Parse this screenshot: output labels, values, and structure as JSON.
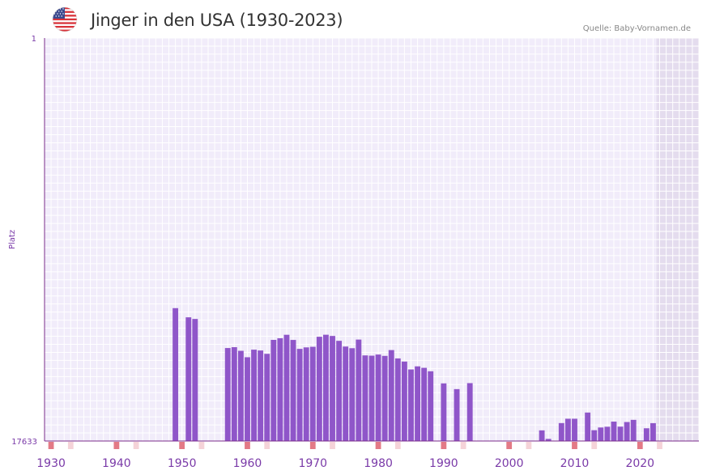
{
  "title": "Jinger in den USA (1930-2023)",
  "source": "Quelle: Baby-Vornamen.de",
  "flag_icon": "us-flag-icon",
  "colors": {
    "bar": "#8f56c9",
    "axis": "#7b2d8b",
    "grid_bg": "#f1ecfa",
    "shade": "#e4dcee",
    "marker": "#e37a86",
    "marker_light": "#f5d3d8",
    "tick_text": "#7a3aa8"
  },
  "chart_data": {
    "type": "bar",
    "title": "Jinger in den USA (1930-2023)",
    "xlabel": "",
    "ylabel": "Platz",
    "y_reversed": true,
    "ylim": [
      1,
      17633
    ],
    "ytick_labels": [
      "1",
      "17633"
    ],
    "xlim": [
      1929,
      2029
    ],
    "xtick_labels": [
      "1930",
      "1940",
      "1950",
      "1960",
      "1970",
      "1980",
      "1990",
      "2000",
      "2010",
      "2020"
    ],
    "xticks": [
      1930,
      1940,
      1950,
      1960,
      1970,
      1980,
      1990,
      2000,
      2010,
      2020
    ],
    "shaded_from_year": 2023,
    "categories": [
      1949,
      1951,
      1952,
      1957,
      1958,
      1959,
      1960,
      1961,
      1962,
      1963,
      1964,
      1965,
      1966,
      1967,
      1968,
      1969,
      1970,
      1971,
      1972,
      1973,
      1974,
      1975,
      1976,
      1977,
      1978,
      1979,
      1980,
      1981,
      1982,
      1983,
      1984,
      1985,
      1986,
      1987,
      1988,
      1990,
      1992,
      1994,
      2005,
      2006,
      2008,
      2009,
      2010,
      2012,
      2013,
      2014,
      2015,
      2016,
      2017,
      2018,
      2019,
      2021,
      2022
    ],
    "values": [
      11819,
      12220,
      12292,
      13564,
      13527,
      13686,
      13967,
      13636,
      13672,
      13818,
      13208,
      13137,
      12984,
      13210,
      13601,
      13536,
      13510,
      13070,
      12982,
      13036,
      13249,
      13499,
      13572,
      13194,
      13887,
      13899,
      13849,
      13908,
      13654,
      14019,
      14156,
      14502,
      14366,
      14431,
      14581,
      15111,
      15362,
      15100,
      17167,
      17541,
      16848,
      16658,
      16658,
      16387,
      17160,
      17041,
      17009,
      16784,
      17005,
      16802,
      16707,
      17075,
      16851
    ],
    "marker_years": [
      1930,
      1933,
      1940,
      1943,
      1950,
      1953,
      1960,
      1963,
      1970,
      1973,
      1980,
      1983,
      1990,
      1993,
      2000,
      2003,
      2010,
      2013,
      2020,
      2023,
      2030
    ],
    "marker_strong": [
      1930,
      1940,
      1950,
      1960,
      1970,
      1980,
      1990,
      2000,
      2010,
      2020,
      2030
    ]
  }
}
